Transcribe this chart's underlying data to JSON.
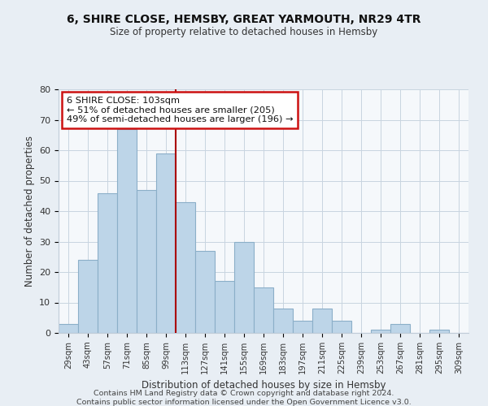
{
  "title": "6, SHIRE CLOSE, HEMSBY, GREAT YARMOUTH, NR29 4TR",
  "subtitle": "Size of property relative to detached houses in Hemsby",
  "xlabel": "Distribution of detached houses by size in Hemsby",
  "ylabel": "Number of detached properties",
  "footer_line1": "Contains HM Land Registry data © Crown copyright and database right 2024.",
  "footer_line2": "Contains public sector information licensed under the Open Government Licence v3.0.",
  "categories": [
    "29sqm",
    "43sqm",
    "57sqm",
    "71sqm",
    "85sqm",
    "99sqm",
    "113sqm",
    "127sqm",
    "141sqm",
    "155sqm",
    "169sqm",
    "183sqm",
    "197sqm",
    "211sqm",
    "225sqm",
    "239sqm",
    "253sqm",
    "267sqm",
    "281sqm",
    "295sqm",
    "309sqm"
  ],
  "values": [
    3,
    24,
    46,
    67,
    47,
    59,
    43,
    27,
    17,
    30,
    15,
    8,
    4,
    8,
    4,
    0,
    1,
    3,
    0,
    1,
    0
  ],
  "bar_color": "#bdd5e8",
  "bar_edge_color": "#8bafc8",
  "vline_x_index": 5.5,
  "vline_color": "#aa0000",
  "annotation_text_line1": "6 SHIRE CLOSE: 103sqm",
  "annotation_text_line2": "← 51% of detached houses are smaller (205)",
  "annotation_text_line3": "49% of semi-detached houses are larger (196) →",
  "ylim": [
    0,
    80
  ],
  "yticks": [
    0,
    10,
    20,
    30,
    40,
    50,
    60,
    70,
    80
  ],
  "bg_color": "#e8eef4",
  "plot_bg_color": "#f5f8fb",
  "grid_color": "#c8d4e0",
  "spine_color": "#c0ccd8"
}
